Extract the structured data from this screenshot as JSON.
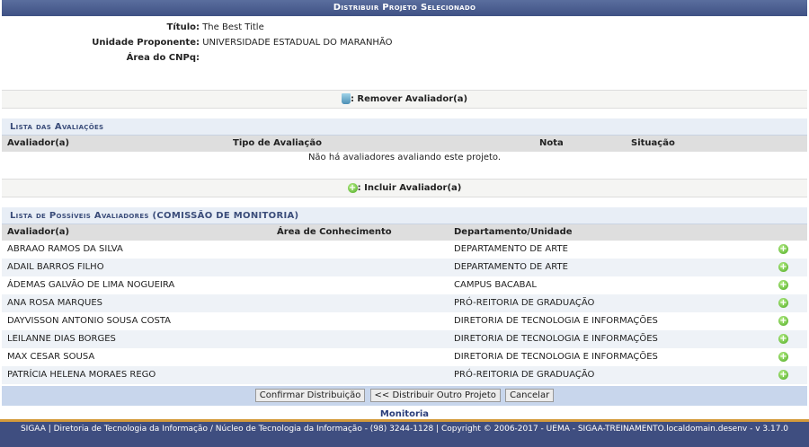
{
  "title": "Distribuir Projeto Selecionado",
  "info": [
    {
      "label": "Título:",
      "value": "The Best Title"
    },
    {
      "label": "Unidade Proponente:",
      "value": "UNIVERSIDADE ESTADUAL DO MARANHÃO"
    },
    {
      "label": "Área do CNPq:",
      "value": ""
    }
  ],
  "remove_legend": ": Remover Avaliador(a)",
  "avaliacoes": {
    "caption": "Lista das Avaliações",
    "headers": [
      "Avaliador(a)",
      "Tipo de Avaliação",
      "Nota",
      "Situação"
    ],
    "empty": "Não há avaliadores avaliando este projeto."
  },
  "include_legend": ": Incluir Avaliador(a)",
  "possiveis": {
    "caption": "Lista de Possíveis Avaliadores (COMISSÃO DE MONITORIA)",
    "headers": [
      "Avaliador(a)",
      "Área de Conhecimento",
      "Departamento/Unidade"
    ],
    "rows": [
      {
        "name": "ABRAAO RAMOS DA SILVA",
        "area": "",
        "dept": "DEPARTAMENTO DE ARTE"
      },
      {
        "name": "ADAIL BARROS FILHO",
        "area": "",
        "dept": "DEPARTAMENTO DE ARTE"
      },
      {
        "name": "ÁDEMAS GALVÃO DE LIMA NOGUEIRA",
        "area": "",
        "dept": "CAMPUS BACABAL"
      },
      {
        "name": "ANA ROSA MARQUES",
        "area": "",
        "dept": "PRÓ-REITORIA DE GRADUAÇÃO"
      },
      {
        "name": "DAYVISSON ANTONIO SOUSA COSTA",
        "area": "",
        "dept": "DIRETORIA DE TECNOLOGIA E INFORMAÇÕES"
      },
      {
        "name": "LEILANNE DIAS BORGES",
        "area": "",
        "dept": "DIRETORIA DE TECNOLOGIA E INFORMAÇÕES"
      },
      {
        "name": "MAX CESAR SOUSA",
        "area": "",
        "dept": "DIRETORIA DE TECNOLOGIA E INFORMAÇÕES"
      },
      {
        "name": "PATRÍCIA HELENA MORAES REGO",
        "area": "",
        "dept": "PRÓ-REITORIA DE GRADUAÇÃO"
      }
    ]
  },
  "buttons": {
    "confirm": "Confirmar Distribuição",
    "other": "<< Distribuir Outro Projeto",
    "cancel": "Cancelar"
  },
  "module": "Monitoria",
  "footer": "SIGAA | Diretoria de Tecnologia da Informação / Núcleo de Tecnologia da Informação - (98) 3244-1128 | Copyright © 2006-2017 - UEMA - SIGAA-TREINAMENTO.localdomain.desenv - v 3.17.0"
}
